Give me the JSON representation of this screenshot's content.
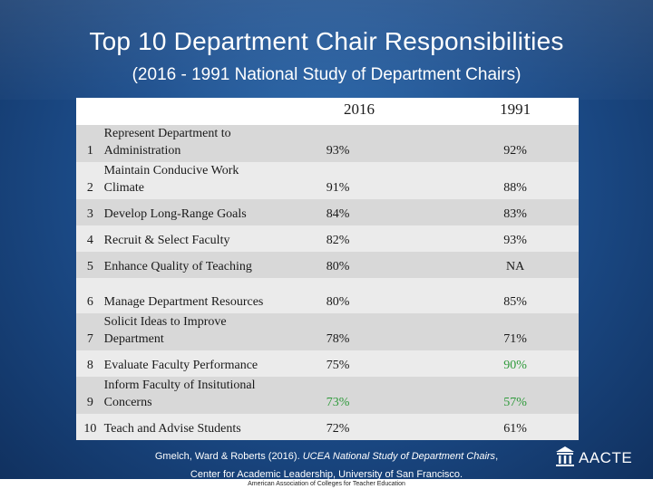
{
  "title": "Top 10 Department Chair  Responsibilities",
  "subtitle": "(2016 - 1991 National Study of Department Chairs)",
  "table": {
    "headers": {
      "year_2016": "2016",
      "year_1991": "1991"
    },
    "rows": [
      {
        "num": "1",
        "label": "Represent Department to Administration",
        "v2016": "93%",
        "v1991": "92%"
      },
      {
        "num": "2",
        "label": "Maintain Conducive Work Climate",
        "v2016": "91%",
        "v1991": "88%"
      },
      {
        "num": "3",
        "label": "Develop Long-Range Goals",
        "v2016": "84%",
        "v1991": "83%"
      },
      {
        "num": "4",
        "label": "Recruit & Select Faculty",
        "v2016": "82%",
        "v1991": "93%"
      },
      {
        "num": "5",
        "label": "Enhance Quality of Teaching",
        "v2016": "80%",
        "v1991": "NA"
      },
      {
        "num": "6",
        "label": "Manage Department Resources",
        "v2016": "80%",
        "v1991": "85%"
      },
      {
        "num": "7",
        "label": "Solicit Ideas to Improve Department",
        "v2016": "78%",
        "v1991": "71%"
      },
      {
        "num": "8",
        "label": "Evaluate Faculty Performance",
        "v2016": "75%",
        "v1991": "90%"
      },
      {
        "num": "9",
        "label": "Inform Faculty of Insitutional Concerns",
        "v2016": "73%",
        "v1991": "57%"
      },
      {
        "num": "10",
        "label": "Teach and Advise Students",
        "v2016": "72%",
        "v1991": "61%"
      }
    ],
    "highlight_color": "#2e9a3a"
  },
  "footer": {
    "citation_authors": "Gmelch, Ward & Roberts (2016).",
    "citation_title": "UCEA National Study of  Department Chairs",
    "citation_comma": ",",
    "citation_line2": "Center for Academic Leadership, University of San Francisco.",
    "org_full_name": "American Association of Colleges for Teacher Education"
  },
  "logo": {
    "text": "AACTE",
    "icon": "building-icon"
  }
}
